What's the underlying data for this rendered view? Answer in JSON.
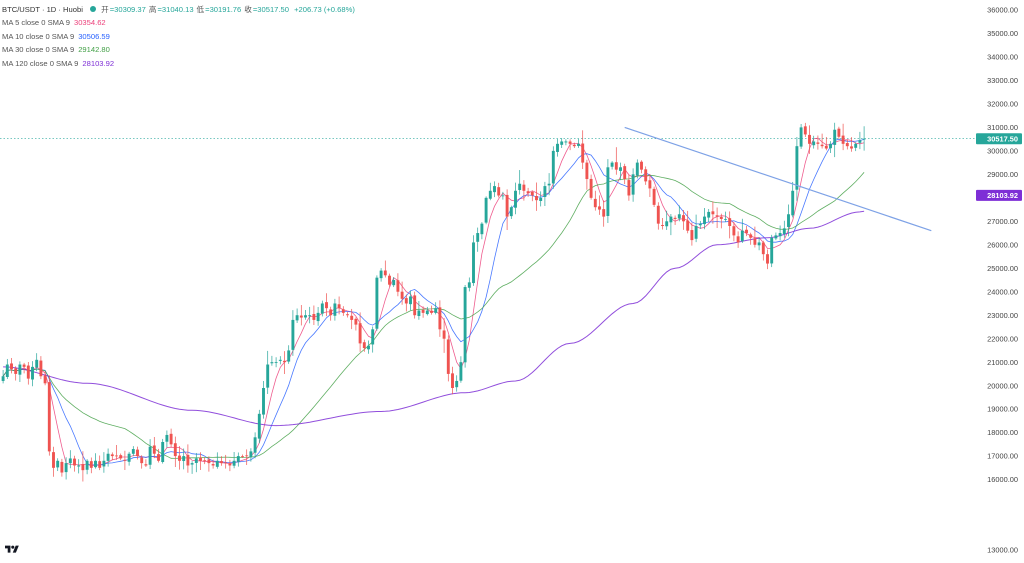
{
  "header": {
    "symbol": "BTC/USDT · 1D · Huobi",
    "status_color": "#26a69a",
    "ohlc": [
      {
        "label": "开",
        "value": "=30309.37"
      },
      {
        "label": "高",
        "value": "=31040.13"
      },
      {
        "label": "低",
        "value": "=30191.76"
      },
      {
        "label": "收",
        "value": "=30517.50"
      }
    ],
    "change": "+206.73 (+0.68%)",
    "value_color": "#26a69a"
  },
  "indicators": [
    {
      "name": "MA 5 close 0 SMA 9",
      "value": "30354.62",
      "color": "#ec407a"
    },
    {
      "name": "MA 10 close 0 SMA 9",
      "value": "30506.59",
      "color": "#2962ff"
    },
    {
      "name": "MA 30 close 0 SMA 9",
      "value": "29142.80",
      "color": "#43a047"
    },
    {
      "name": "MA 120 close 0 SMA 9",
      "value": "28103.92",
      "color": "#7e2fd6"
    }
  ],
  "logo": {
    "icon": "tradingview-logo-icon",
    "text": "TV"
  },
  "chart_data": {
    "type": "candlestick",
    "timeframe": "1D",
    "ylim": [
      13000,
      36500
    ],
    "yticks": [
      "36000.00",
      "35000.00",
      "34000.00",
      "33000.00",
      "32000.00",
      "31000.00",
      "30000.00",
      "29000.00",
      "28000.00",
      "27000.00",
      "26000.00",
      "25000.00",
      "24000.00",
      "23000.00",
      "22000.00",
      "21000.00",
      "20000.00",
      "19000.00",
      "18000.00",
      "17000.00",
      "16000.00",
      "13000.00"
    ],
    "last_price": {
      "value": "30517.50",
      "color": "#26a69a"
    },
    "ma120_tag": {
      "value": "28103.92",
      "color": "#7e2fd6"
    },
    "up_color": "#26a69a",
    "down_color": "#ef5350",
    "closes": [
      20400,
      20900,
      20700,
      20500,
      20900,
      20800,
      20300,
      20800,
      21100,
      20400,
      20100,
      17200,
      16500,
      16800,
      16300,
      16700,
      16900,
      16600,
      16600,
      16400,
      16800,
      16500,
      16800,
      16500,
      16800,
      17100,
      17000,
      17000,
      16900,
      16800,
      17100,
      17300,
      17000,
      16700,
      16600,
      17400,
      17100,
      16800,
      17600,
      17900,
      17500,
      17000,
      16800,
      17000,
      16600,
      16700,
      16900,
      16800,
      16800,
      16700,
      16600,
      16800,
      16700,
      16700,
      16600,
      16800,
      17000,
      17000,
      17000,
      17200,
      17800,
      18800,
      19900,
      20900,
      21000,
      21000,
      21100,
      21000,
      21500,
      22800,
      23000,
      22900,
      23000,
      23000,
      22800,
      23100,
      23500,
      23300,
      23000,
      23500,
      23300,
      23100,
      23000,
      22800,
      22600,
      21800,
      21600,
      21700,
      22400,
      24600,
      24900,
      24700,
      24300,
      24500,
      24000,
      23700,
      23500,
      23800,
      23000,
      23200,
      23100,
      23200,
      23100,
      23300,
      22400,
      22000,
      20500,
      19900,
      20200,
      21000,
      24200,
      24400,
      26100,
      26500,
      26900,
      28000,
      28300,
      28500,
      28100,
      28100,
      27200,
      27600,
      28300,
      28600,
      28300,
      28200,
      28100,
      27900,
      28000,
      28500,
      28600,
      30000,
      30300,
      30400,
      30400,
      30300,
      30200,
      30300,
      29500,
      28800,
      28000,
      27600,
      27500,
      27200,
      29300,
      29500,
      29200,
      29300,
      28800,
      28100,
      29000,
      29500,
      29200,
      28700,
      28400,
      27700,
      26900,
      26800,
      27000,
      27200,
      27100,
      27300,
      27000,
      26600,
      26200,
      26800,
      26900,
      27200,
      27400,
      27300,
      27200,
      27100,
      27100,
      26800,
      26400,
      26100,
      26600,
      26500,
      26300,
      26000,
      26100,
      25600,
      25200,
      26300,
      26400,
      26500,
      26700,
      27300,
      28300,
      30200,
      31000,
      30700,
      30300,
      30400,
      30300,
      30200,
      30100,
      30300,
      30900,
      30600,
      30300,
      30200,
      30100,
      30300,
      30450,
      30517.5
    ],
    "series": [
      {
        "name": "MA 5 close 0 SMA 9",
        "period": 5,
        "color": "#ec407a",
        "last": 30354.62
      },
      {
        "name": "MA 10 close 0 SMA 9",
        "period": 10,
        "color": "#2962ff",
        "last": 30506.59
      },
      {
        "name": "MA 30 close 0 SMA 9",
        "period": 30,
        "color": "#43a047",
        "last": 29142.8
      },
      {
        "name": "MA 120 close 0 SMA 9",
        "period": 120,
        "color": "#7e2fd6",
        "last": 28103.92
      }
    ],
    "ma120_path": [
      {
        "bar": 0,
        "value": 20800
      },
      {
        "bar": 20,
        "value": 20100
      },
      {
        "bar": 45,
        "value": 18950
      },
      {
        "bar": 65,
        "value": 18300
      },
      {
        "bar": 90,
        "value": 18900
      },
      {
        "bar": 110,
        "value": 19700
      },
      {
        "bar": 122,
        "value": 20200
      },
      {
        "bar": 135,
        "value": 21800
      },
      {
        "bar": 150,
        "value": 23500
      },
      {
        "bar": 160,
        "value": 25000
      },
      {
        "bar": 170,
        "value": 26000
      },
      {
        "bar": 182,
        "value": 26300
      },
      {
        "bar": 192,
        "value": 26700
      },
      {
        "bar": 204,
        "value": 27400
      },
      {
        "bar": 213,
        "value": 28103.92
      }
    ],
    "trendline": {
      "start": {
        "bar": 148,
        "value": 31000
      },
      "end": {
        "bar": 221,
        "value": 26600
      },
      "color": "#7ea2e6"
    }
  }
}
